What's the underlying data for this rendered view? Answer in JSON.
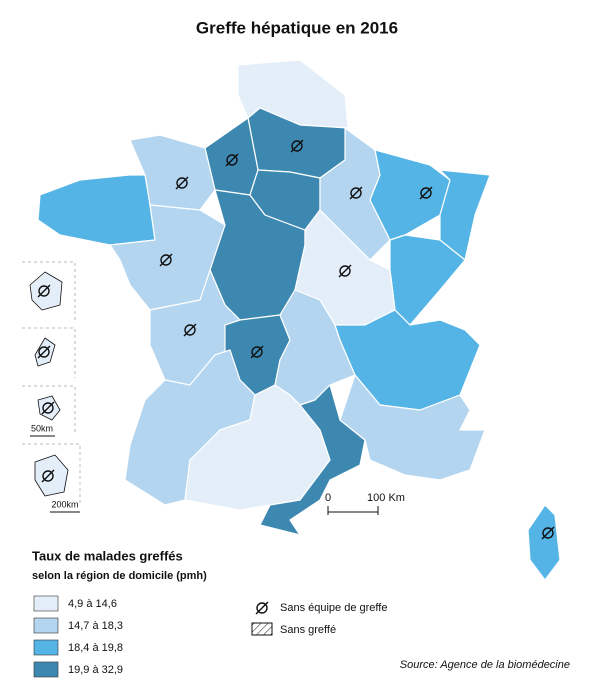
{
  "title": "Greffe hépatique en 2016",
  "legend": {
    "title": "Taux de malades greffés",
    "subtitle": "selon la région de domicile (pmh)",
    "classes": [
      {
        "label": "4,9 à 14,6",
        "color": "#e3eef9"
      },
      {
        "label": "14,7 à 18,3",
        "color": "#b3d5ef"
      },
      {
        "label": "18,4 à 19,8",
        "color": "#54b4e6"
      },
      {
        "label": "19,9 à 32,9",
        "color": "#3d88b1"
      }
    ]
  },
  "symbols": {
    "no_team": "Sans équipe de greffe",
    "no_transplant": "Sans greffé"
  },
  "scale": {
    "start": "0",
    "end": "100 Km",
    "inset_small": "50km",
    "inset_large": "200km"
  },
  "source": "Source: Agence de la biomédecine"
}
